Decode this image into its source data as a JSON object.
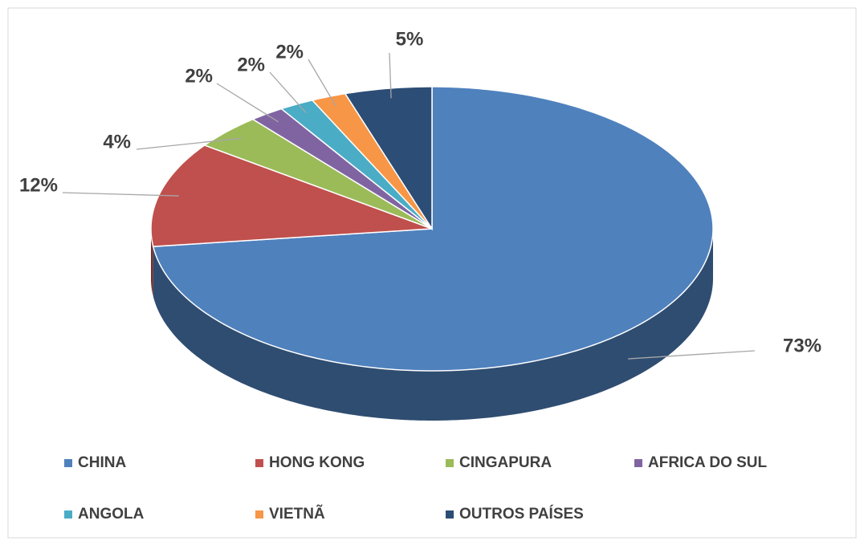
{
  "chart_data": {
    "type": "pie3d",
    "categories": [
      "CHINA",
      "HONG KONG",
      "CINGAPURA",
      "AFRICA DO SUL",
      "ANGOLA",
      "VIETNÃ",
      "OUTROS PAÍSES"
    ],
    "values": [
      73,
      12,
      4,
      2,
      2,
      2,
      5
    ],
    "value_labels": [
      "73%",
      "12%",
      "4%",
      "2%",
      "2%",
      "2%",
      "5%"
    ],
    "colors": [
      "#4f81bd",
      "#c0504d",
      "#9bbb59",
      "#8064a2",
      "#4bacc6",
      "#f79646",
      "#2c4d75"
    ],
    "legend": "bottom"
  }
}
